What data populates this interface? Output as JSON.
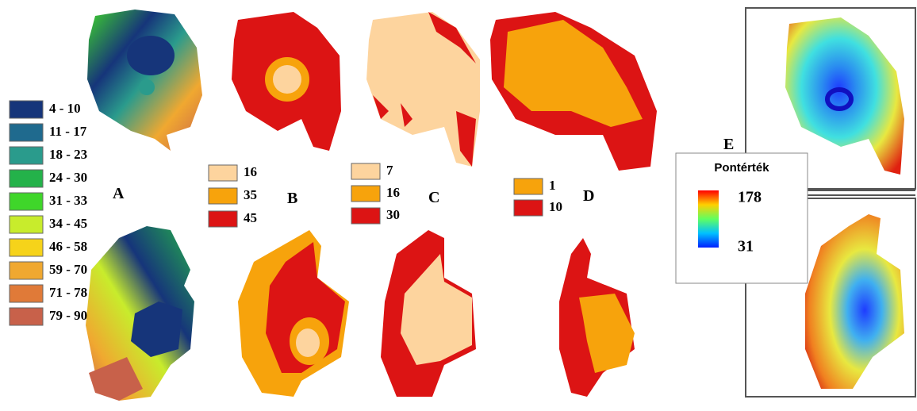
{
  "panels": [
    {
      "label": "A",
      "legend": [
        {
          "label": "4 - 10",
          "color": "#16357a"
        },
        {
          "label": "11 - 17",
          "color": "#1f6a8e"
        },
        {
          "label": "18 - 23",
          "color": "#2a9b8c"
        },
        {
          "label": "24 - 30",
          "color": "#24b24a"
        },
        {
          "label": "31 - 33",
          "color": "#3fd62a"
        },
        {
          "label": "34 - 45",
          "color": "#c8ec2c"
        },
        {
          "label": "46 - 58",
          "color": "#f6d31a"
        },
        {
          "label": "59 - 70",
          "color": "#f0a830"
        },
        {
          "label": "71 - 78",
          "color": "#e07a38"
        },
        {
          "label": "79 - 90",
          "color": "#c8614a"
        }
      ]
    },
    {
      "label": "B",
      "legend": [
        {
          "label": "16",
          "color": "#fdd49e"
        },
        {
          "label": "35",
          "color": "#f7a30c"
        },
        {
          "label": "45",
          "color": "#dc1414"
        }
      ]
    },
    {
      "label": "C",
      "legend": [
        {
          "label": "7",
          "color": "#fdd49e"
        },
        {
          "label": "16",
          "color": "#f7a30c"
        },
        {
          "label": "30",
          "color": "#dc1414"
        }
      ]
    },
    {
      "label": "D",
      "legend": [
        {
          "label": "1",
          "color": "#f7a30c"
        },
        {
          "label": "10",
          "color": "#dc1414"
        }
      ]
    },
    {
      "label": "E",
      "legend_title": "Pontérték",
      "scale": {
        "max": 178,
        "min": 31
      }
    }
  ]
}
